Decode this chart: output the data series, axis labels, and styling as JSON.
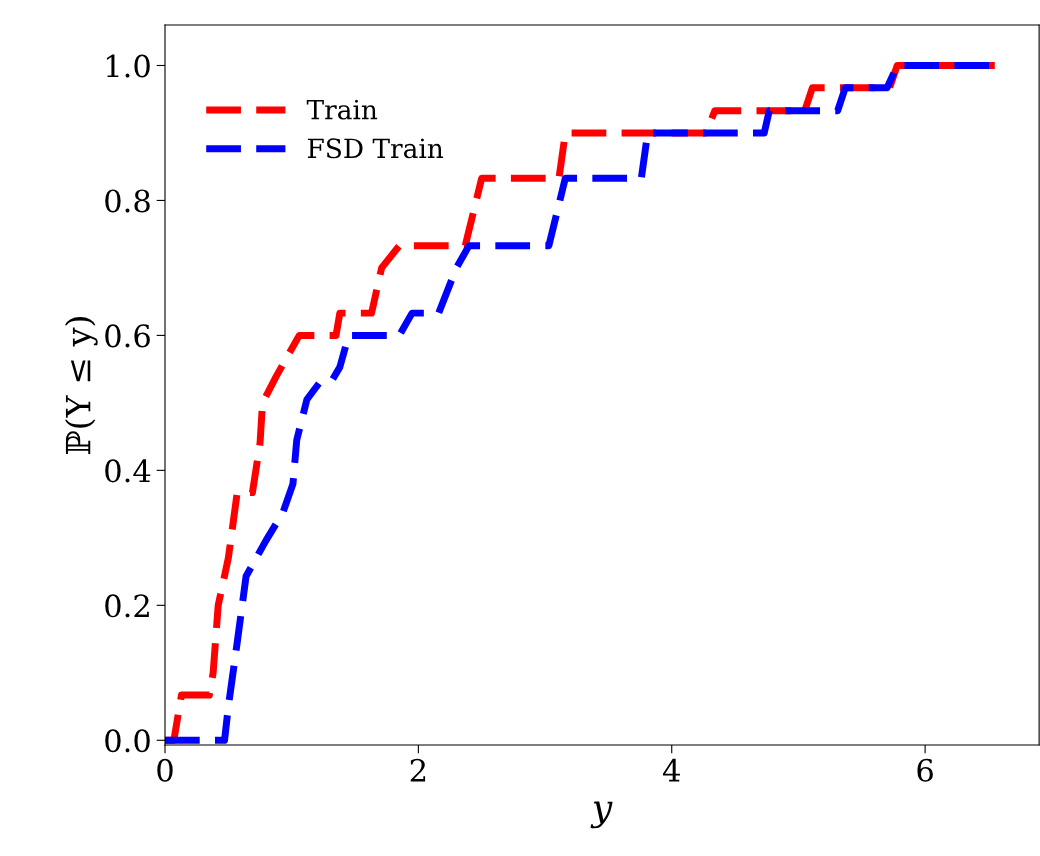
{
  "chart_data": {
    "type": "line",
    "xlabel": "y",
    "ylabel": "ℙ(Y ≤ y)",
    "xlim": [
      0,
      6.9
    ],
    "ylim": [
      -0.007,
      1.06
    ],
    "xticks": [
      0,
      2,
      4,
      6
    ],
    "yticks": [
      {
        "value": 0,
        "label": "0.0"
      },
      0.2,
      0.4,
      0.6,
      0.8,
      {
        "value": 1,
        "label": "1.0"
      }
    ],
    "grid": false,
    "legend": "top left",
    "line_style": "dashed",
    "marker": "none",
    "series": [
      {
        "name": "Train",
        "color": "#ff0000",
        "x": [
          0,
          0.07,
          0.13,
          0.35,
          0.38,
          0.42,
          0.5,
          0.57,
          0.69,
          0.75,
          0.77,
          0.88,
          1.06,
          1.35,
          1.38,
          1.63,
          1.71,
          1.85,
          2.37,
          2.5,
          3.11,
          3.16,
          4.27,
          4.34,
          5.05,
          5.11,
          5.72,
          5.78,
          6.55
        ],
        "values": [
          0,
          0,
          0.067,
          0.067,
          0.1,
          0.2,
          0.27,
          0.367,
          0.367,
          0.44,
          0.5,
          0.54,
          0.6,
          0.6,
          0.633,
          0.633,
          0.7,
          0.733,
          0.733,
          0.833,
          0.833,
          0.9,
          0.9,
          0.933,
          0.933,
          0.967,
          0.967,
          1.0,
          1.0
        ]
      },
      {
        "name": "FSD Train",
        "color": "#0000ff",
        "x": [
          0,
          0.47,
          0.5,
          0.57,
          0.64,
          0.8,
          0.93,
          1.01,
          1.04,
          1.12,
          1.22,
          1.32,
          1.38,
          1.45,
          1.85,
          1.95,
          2.16,
          2.3,
          2.4,
          3.03,
          3.16,
          3.76,
          3.81,
          4.73,
          4.77,
          5.31,
          5.37,
          5.7,
          5.78,
          6.55
        ],
        "values": [
          0,
          0,
          0.05,
          0.145,
          0.243,
          0.297,
          0.337,
          0.38,
          0.445,
          0.505,
          0.53,
          0.534,
          0.553,
          0.6,
          0.6,
          0.633,
          0.633,
          0.7,
          0.733,
          0.733,
          0.833,
          0.833,
          0.9,
          0.9,
          0.933,
          0.933,
          0.967,
          0.967,
          1.0,
          1.0
        ]
      }
    ]
  }
}
